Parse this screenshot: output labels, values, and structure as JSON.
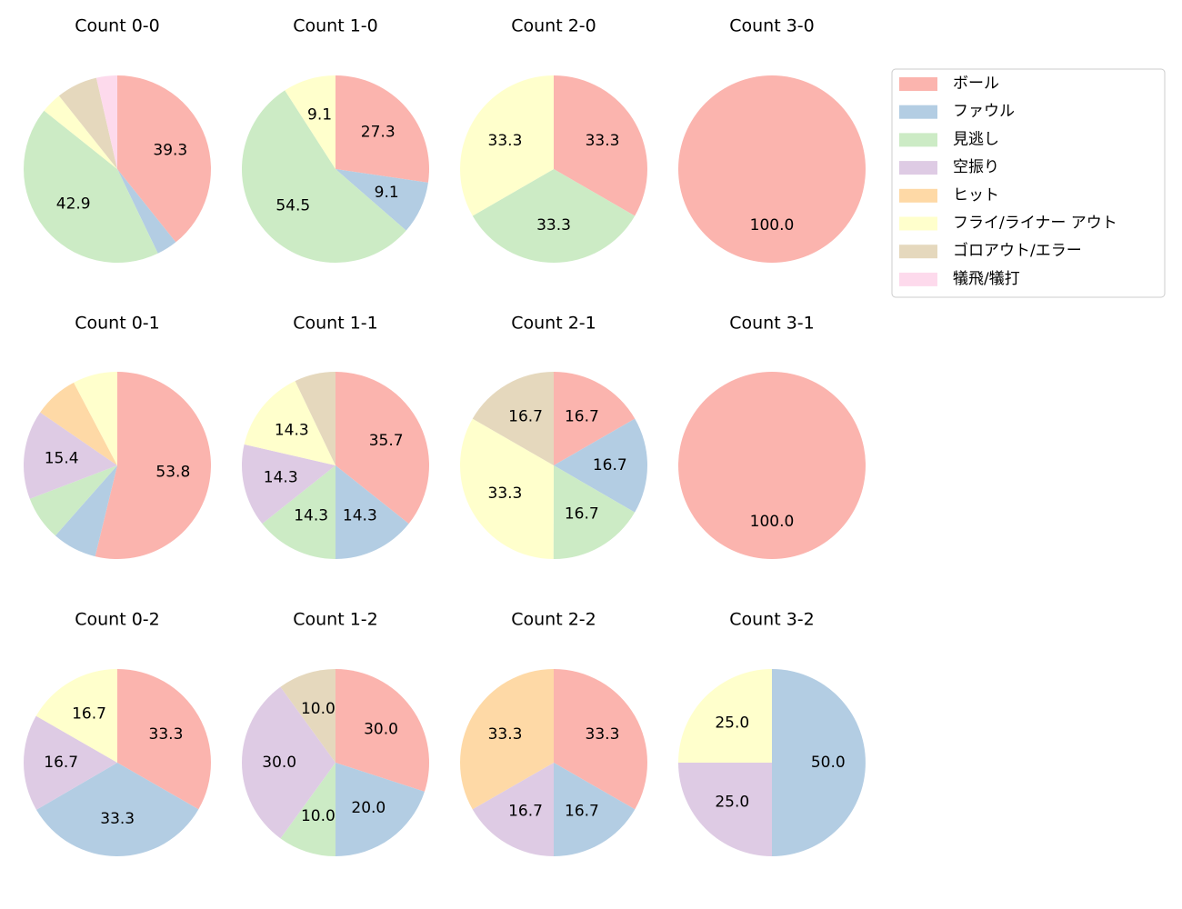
{
  "chart_data": [
    {
      "type": "pie",
      "title": "Count 0-0",
      "values": [
        39.3,
        3.6,
        42.9,
        0,
        0,
        3.6,
        7.1,
        3.6
      ],
      "value_labels": [
        "39.3",
        null,
        "42.9",
        null,
        null,
        null,
        null,
        null
      ]
    },
    {
      "type": "pie",
      "title": "Count 1-0",
      "values": [
        27.3,
        9.1,
        54.5,
        0,
        0,
        9.1,
        0,
        0
      ],
      "value_labels": [
        "27.3",
        "9.1",
        "54.5",
        null,
        null,
        "9.1",
        null,
        null
      ]
    },
    {
      "type": "pie",
      "title": "Count 2-0",
      "values": [
        33.3,
        0,
        33.3,
        0,
        0,
        33.3,
        0,
        0
      ],
      "value_labels": [
        "33.3",
        null,
        "33.3",
        null,
        null,
        "33.3",
        null,
        null
      ]
    },
    {
      "type": "pie",
      "title": "Count 3-0",
      "values": [
        100,
        0,
        0,
        0,
        0,
        0,
        0,
        0
      ],
      "value_labels": [
        "100.0",
        null,
        null,
        null,
        null,
        null,
        null,
        null
      ]
    },
    {
      "type": "pie",
      "title": "Count 0-1",
      "values": [
        53.8,
        7.7,
        7.7,
        15.4,
        7.7,
        7.7,
        0,
        0
      ],
      "value_labels": [
        "53.8",
        null,
        null,
        "15.4",
        null,
        null,
        null,
        null
      ]
    },
    {
      "type": "pie",
      "title": "Count 1-1",
      "values": [
        35.7,
        14.3,
        14.3,
        14.3,
        0,
        14.3,
        7.1,
        0
      ],
      "value_labels": [
        "35.7",
        "14.3",
        "14.3",
        "14.3",
        null,
        "14.3",
        null,
        null
      ]
    },
    {
      "type": "pie",
      "title": "Count 2-1",
      "values": [
        16.7,
        16.7,
        16.7,
        0,
        0,
        33.3,
        16.7,
        0
      ],
      "value_labels": [
        "16.7",
        "16.7",
        "16.7",
        null,
        null,
        "33.3",
        "16.7",
        null
      ]
    },
    {
      "type": "pie",
      "title": "Count 3-1",
      "values": [
        100,
        0,
        0,
        0,
        0,
        0,
        0,
        0
      ],
      "value_labels": [
        "100.0",
        null,
        null,
        null,
        null,
        null,
        null,
        null
      ]
    },
    {
      "type": "pie",
      "title": "Count 0-2",
      "values": [
        33.3,
        33.3,
        0,
        16.7,
        0,
        16.7,
        0,
        0
      ],
      "value_labels": [
        "33.3",
        "33.3",
        null,
        "16.7",
        null,
        "16.7",
        null,
        null
      ]
    },
    {
      "type": "pie",
      "title": "Count 1-2",
      "values": [
        30,
        20,
        10,
        30,
        0,
        0,
        10,
        0
      ],
      "value_labels": [
        "30.0",
        "20.0",
        "10.0",
        "30.0",
        null,
        null,
        "10.0",
        null
      ]
    },
    {
      "type": "pie",
      "title": "Count 2-2",
      "values": [
        33.3,
        16.7,
        0,
        16.7,
        33.3,
        0,
        0,
        0
      ],
      "value_labels": [
        "33.3",
        "16.7",
        null,
        "16.7",
        "33.3",
        null,
        null,
        null
      ]
    },
    {
      "type": "pie",
      "title": "Count 3-2",
      "values": [
        0,
        50,
        0,
        25,
        0,
        25,
        0,
        0
      ],
      "value_labels": [
        null,
        "50.0",
        null,
        "25.0",
        null,
        "25.0",
        null,
        null
      ]
    }
  ],
  "legend": {
    "loc": "upper right",
    "categories": [
      "ボール",
      "ファウル",
      "見逃し",
      "空振り",
      "ヒット",
      "フライ/ライナー アウト",
      "ゴロアウト/エラー",
      "犠飛/犠打"
    ],
    "colors": [
      "#fbb4ae",
      "#b3cde3",
      "#ccebc5",
      "#decbe4",
      "#fed9a6",
      "#ffffcc",
      "#e5d8bd",
      "#fddaec"
    ]
  }
}
